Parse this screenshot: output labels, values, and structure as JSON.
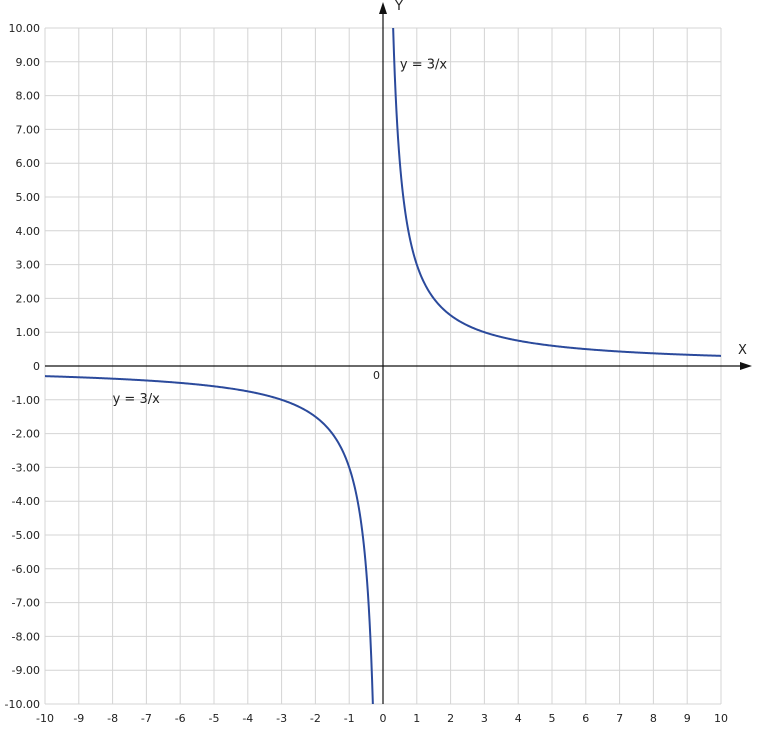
{
  "chart_data": {
    "type": "line",
    "xlabel": "X",
    "ylabel": "Y",
    "origin_label": "0",
    "xlim": [
      -10,
      10
    ],
    "ylim": [
      -10,
      10
    ],
    "x_ticks": [
      "-10",
      "-9",
      "-8",
      "-7",
      "-6",
      "-5",
      "-4",
      "-3",
      "-2",
      "-1",
      "0",
      "1",
      "2",
      "3",
      "4",
      "5",
      "6",
      "7",
      "8",
      "9",
      "10"
    ],
    "y_ticks": [
      "10.00",
      "9.00",
      "8.00",
      "7.00",
      "6.00",
      "5.00",
      "4.00",
      "3.00",
      "2.00",
      "1.00",
      "0",
      "-1.00",
      "-2.00",
      "-3.00",
      "-4.00",
      "-5.00",
      "-6.00",
      "-7.00",
      "-8.00",
      "-9.00",
      "-10.00"
    ],
    "grid": true,
    "series": [
      {
        "function": "y = 3/x",
        "k": 3,
        "color": "#2b4a9c",
        "branches": [
          {
            "x_from": 0.3,
            "x_to": 10
          },
          {
            "x_from": -10,
            "x_to": -0.3
          }
        ]
      }
    ],
    "annotations": [
      {
        "text": "y = 3/x",
        "x": 0.5,
        "y": 8.8
      },
      {
        "text": "y = 3/x",
        "x": -8,
        "y": -1.1
      }
    ]
  }
}
